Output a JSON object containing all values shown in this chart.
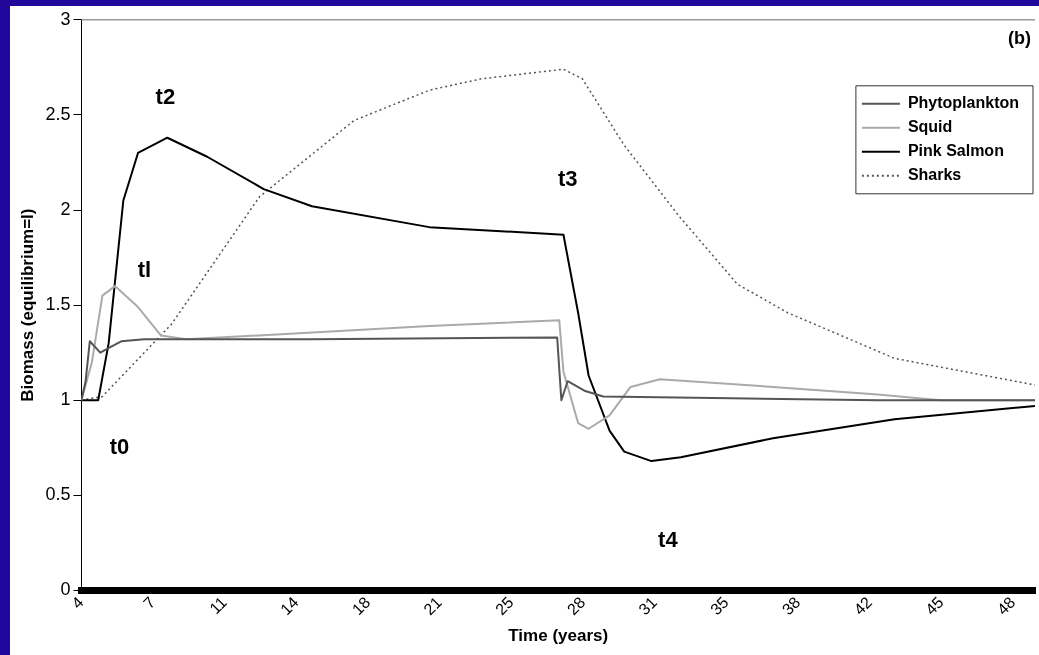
{
  "chart_data": {
    "type": "line",
    "xlabel": "Time (years)",
    "ylabel": "Biomass (equilibrium=l)",
    "xlim": [
      4,
      49.5
    ],
    "xticks": [
      4,
      {
        "value": 7.42,
        "label": "7"
      },
      {
        "value": 10.84,
        "label": "11"
      },
      {
        "value": 14.26,
        "label": "14"
      },
      {
        "value": 17.68,
        "label": "18"
      },
      {
        "value": 21.1,
        "label": "21"
      },
      {
        "value": 24.52,
        "label": "25"
      },
      {
        "value": 27.94,
        "label": "28"
      },
      {
        "value": 31.36,
        "label": "31"
      },
      {
        "value": 34.78,
        "label": "35"
      },
      {
        "value": 38.2,
        "label": "38"
      },
      {
        "value": 41.62,
        "label": "42"
      },
      {
        "value": 45.04,
        "label": "45"
      },
      {
        "value": 48.46,
        "label": "48"
      }
    ],
    "ylim": [
      0,
      3
    ],
    "yticks": [
      0,
      0.5,
      1,
      1.5,
      2,
      2.5,
      3
    ],
    "grid": false,
    "legend": "top right",
    "marker": "none",
    "series": [
      {
        "name": "Phytoplankton",
        "color": "#555555",
        "line_style": "solid",
        "x": [
          4,
          4.2,
          4.4,
          4.9,
          5.4,
          5.9,
          7,
          15,
          26.7,
          26.9,
          27.2,
          28,
          28.9,
          35,
          42,
          49.5
        ],
        "values": [
          1,
          1.1,
          1.31,
          1.25,
          1.28,
          1.31,
          1.32,
          1.32,
          1.33,
          1.0,
          1.1,
          1.05,
          1.02,
          1.01,
          1.0,
          1.0
        ]
      },
      {
        "name": "Squid",
        "color": "#aaaaaa",
        "line_style": "solid",
        "x": [
          4,
          4.5,
          5.0,
          5.6,
          6.7,
          7.8,
          9,
          20.6,
          26.8,
          27.0,
          27.7,
          28.2,
          29.2,
          30.2,
          31.6,
          37,
          42,
          45,
          49.5
        ],
        "values": [
          1,
          1.2,
          1.55,
          1.6,
          1.49,
          1.34,
          1.32,
          1.39,
          1.42,
          1.15,
          0.88,
          0.85,
          0.92,
          1.07,
          1.11,
          1.07,
          1.03,
          1.0,
          1.0
        ]
      },
      {
        "name": "Pink Salmon",
        "color": "#000000",
        "line_style": "solid",
        "x": [
          4,
          4.8,
          5.3,
          6.0,
          6.7,
          8.1,
          10,
          12.7,
          15,
          20.6,
          27.0,
          27.7,
          28.2,
          29.2,
          29.9,
          31.2,
          32.6,
          37,
          42.8,
          49.5
        ],
        "values": [
          1,
          1,
          1.3,
          2.05,
          2.3,
          2.38,
          2.28,
          2.11,
          2.02,
          1.91,
          1.87,
          1.46,
          1.13,
          0.84,
          0.73,
          0.68,
          0.7,
          0.8,
          0.9,
          0.97
        ]
      },
      {
        "name": "Sharks",
        "color": "#555555",
        "line_style": "dotted",
        "x": [
          4,
          5,
          8.3,
          12.5,
          17,
          20.6,
          23.1,
          27.0,
          27.9,
          29.9,
          32.5,
          35.3,
          37.7,
          42.8,
          49.5
        ],
        "values": [
          1,
          1.02,
          1.4,
          2.07,
          2.47,
          2.63,
          2.69,
          2.74,
          2.69,
          2.34,
          1.97,
          1.61,
          1.46,
          1.22,
          1.08
        ]
      }
    ],
    "annotations": [
      "t0",
      "tl",
      "t2",
      "t3",
      "t4",
      "(b)"
    ]
  }
}
